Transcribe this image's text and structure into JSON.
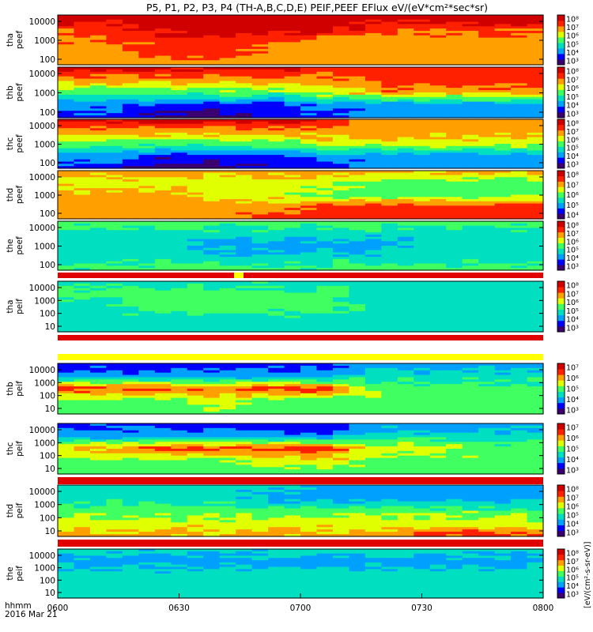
{
  "title": "P5, P1, P2, P3, P4 (TH-A,B,C,D,E) PEIF,PEEF EFlux eV/(eV*cm²*sec*sr)",
  "footer": {
    "label_line1": "hhmm",
    "label_line2": "2016 Mar 21"
  },
  "colorbar_unit": "[eV/(cm²-s-sr-eV)]",
  "colors": {
    "scale": [
      "#3a0070",
      "#0000ff",
      "#00a0ff",
      "#00e0c0",
      "#40ff60",
      "#e0ff00",
      "#ffa000",
      "#ff2000",
      "#d00000"
    ],
    "flag_red": "#e00000",
    "flag_yellow": "#ffff00"
  },
  "chart_data": {
    "type": "heatmap",
    "x_axis": {
      "tick_labels": [
        "0600",
        "0630",
        "0700",
        "0730",
        "0800"
      ],
      "range": [
        "0600",
        "0800"
      ]
    },
    "y_axis": {
      "scale": "log",
      "tick_labels": [
        "10",
        "100",
        "1000",
        "10000"
      ]
    },
    "colorbar_tick_labels": [
      "10³",
      "10⁴",
      "10⁵",
      "10⁶",
      "10⁷",
      "10⁸"
    ],
    "panels": [
      {
        "label_line1": "tha",
        "label_line2": "peef",
        "ticks": [
          "100",
          "1000",
          "10000"
        ],
        "profile": "hot",
        "spec_min": 3,
        "spec_max": 8,
        "levels": [
          [
            8,
            8,
            9,
            9,
            8,
            8,
            8,
            8,
            9,
            9
          ],
          [
            7,
            7,
            8,
            8,
            8,
            8,
            7,
            7,
            7,
            7
          ],
          [
            6,
            7,
            7,
            7,
            7,
            6,
            6,
            6,
            6,
            6
          ],
          [
            6,
            6,
            7,
            7,
            6,
            6,
            6,
            6,
            6,
            6
          ],
          [
            6,
            6,
            6,
            6,
            6,
            6,
            6,
            6,
            6,
            6
          ]
        ]
      },
      {
        "label_line1": "thb",
        "label_line2": "peef",
        "ticks": [
          "100",
          "1000",
          "10000"
        ],
        "profile": "cold",
        "spec_min": 3,
        "spec_max": 8,
        "levels": [
          [
            8,
            8,
            8,
            8,
            8,
            7,
            7,
            7,
            7,
            7
          ],
          [
            6,
            6,
            6,
            6,
            6,
            6,
            7,
            7,
            7,
            7
          ],
          [
            4,
            4,
            4,
            4,
            4,
            5,
            6,
            6,
            6,
            6
          ],
          [
            2,
            2,
            1,
            1,
            1,
            2,
            2,
            2,
            2,
            2
          ],
          [
            1,
            1,
            0,
            0,
            1,
            1,
            2,
            2,
            2,
            2
          ]
        ]
      },
      {
        "label_line1": "thc",
        "label_line2": "peef",
        "ticks": [
          "100",
          "1000",
          "10000"
        ],
        "profile": "cold",
        "spec_min": 3,
        "spec_max": 8,
        "levels": [
          [
            8,
            8,
            8,
            8,
            8,
            7,
            6,
            6,
            6,
            6
          ],
          [
            6,
            6,
            6,
            6,
            6,
            6,
            6,
            6,
            6,
            6
          ],
          [
            4,
            4,
            4,
            4,
            4,
            5,
            5,
            5,
            5,
            5
          ],
          [
            2,
            2,
            1,
            1,
            1,
            2,
            2,
            2,
            2,
            2
          ],
          [
            1,
            1,
            0,
            0,
            1,
            1,
            2,
            2,
            2,
            2
          ]
        ]
      },
      {
        "label_line1": "thd",
        "label_line2": "peef",
        "ticks": [
          "100",
          "1000",
          "10000"
        ],
        "profile": "mixed",
        "spec_min": 4,
        "spec_max": 8,
        "levels": [
          [
            6,
            6,
            6,
            6,
            6,
            6,
            6,
            6,
            6,
            6
          ],
          [
            5,
            5,
            5,
            5,
            5,
            5,
            4,
            4,
            4,
            4
          ],
          [
            6,
            6,
            6,
            5,
            5,
            4,
            4,
            4,
            4,
            4
          ],
          [
            6,
            6,
            6,
            6,
            6,
            7,
            7,
            7,
            7,
            7
          ],
          [
            6,
            6,
            6,
            6,
            7,
            7,
            7,
            7,
            7,
            7
          ]
        ]
      },
      {
        "label_line1": "the",
        "label_line2": "peef",
        "ticks": [
          "100",
          "1000",
          "10000"
        ],
        "profile": "green",
        "spec_min": 3,
        "spec_max": 8,
        "levels": [
          [
            4,
            4,
            4,
            4,
            4,
            4,
            4,
            4,
            4,
            4
          ],
          [
            3,
            3,
            3,
            3,
            3,
            3,
            3,
            3,
            3,
            3
          ],
          [
            3,
            3,
            3,
            2,
            2,
            2,
            2,
            3,
            3,
            3
          ],
          [
            3,
            3,
            3,
            3,
            3,
            3,
            3,
            3,
            3,
            3
          ],
          [
            4,
            4,
            4,
            4,
            4,
            4,
            4,
            4,
            4,
            4
          ]
        ]
      },
      {
        "label_line1": "tha",
        "label_line2": "peif",
        "ticks": [
          "10",
          "100",
          "1000",
          "10000"
        ],
        "profile": "green",
        "spec_min": 3,
        "spec_max": 8,
        "levels": [
          [
            3,
            3,
            3,
            3,
            3,
            3,
            3,
            3,
            3,
            3
          ],
          [
            4,
            4,
            4,
            4,
            4,
            4,
            3,
            3,
            3,
            3
          ],
          [
            3,
            3,
            4,
            4,
            4,
            4,
            3,
            3,
            3,
            3
          ],
          [
            3,
            3,
            3,
            3,
            3,
            3,
            3,
            3,
            3,
            3
          ],
          [
            3,
            3,
            3,
            3,
            3,
            3,
            3,
            3,
            3,
            3
          ]
        ]
      },
      {
        "label_line1": "thb",
        "label_line2": "peif",
        "ticks": [
          "10",
          "100",
          "1000",
          "10000"
        ],
        "profile": "ion",
        "spec_min": 3,
        "spec_max": 7,
        "levels": [
          [
            1,
            1,
            1,
            1,
            1,
            1,
            2,
            2,
            2,
            2
          ],
          [
            2,
            2,
            2,
            2,
            2,
            2,
            3,
            3,
            3,
            3
          ],
          [
            7,
            7,
            7,
            6,
            7,
            7,
            4,
            4,
            4,
            4
          ],
          [
            4,
            4,
            4,
            5,
            4,
            4,
            4,
            4,
            4,
            4
          ],
          [
            4,
            4,
            4,
            4,
            4,
            4,
            4,
            4,
            4,
            4
          ]
        ]
      },
      {
        "label_line1": "thc",
        "label_line2": "peif",
        "ticks": [
          "10",
          "100",
          "1000",
          "10000"
        ],
        "profile": "ion",
        "spec_min": 3,
        "spec_max": 7,
        "levels": [
          [
            1,
            1,
            1,
            1,
            1,
            1,
            2,
            2,
            2,
            2
          ],
          [
            2,
            2,
            2,
            2,
            2,
            2,
            3,
            3,
            3,
            3
          ],
          [
            6,
            6,
            7,
            7,
            7,
            7,
            5,
            5,
            4,
            4
          ],
          [
            4,
            4,
            4,
            4,
            5,
            5,
            4,
            4,
            4,
            4
          ],
          [
            4,
            4,
            4,
            4,
            4,
            4,
            4,
            4,
            4,
            4
          ]
        ]
      },
      {
        "label_line1": "thd",
        "label_line2": "peif",
        "ticks": [
          "10",
          "100",
          "1000",
          "10000"
        ],
        "profile": "ionhot",
        "spec_min": 3,
        "spec_max": 8,
        "levels": [
          [
            3,
            3,
            3,
            3,
            3,
            2,
            2,
            2,
            2,
            2
          ],
          [
            3,
            3,
            3,
            3,
            2,
            2,
            2,
            2,
            2,
            2
          ],
          [
            4,
            4,
            4,
            4,
            4,
            4,
            4,
            4,
            4,
            4
          ],
          [
            5,
            5,
            5,
            5,
            5,
            5,
            5,
            5,
            5,
            5
          ],
          [
            6,
            6,
            6,
            6,
            6,
            6,
            6,
            7,
            7,
            7
          ]
        ]
      },
      {
        "label_line1": "the",
        "label_line2": "peif",
        "ticks": [
          "10",
          "100",
          "1000",
          "10000"
        ],
        "profile": "green",
        "spec_min": 3,
        "spec_max": 8,
        "levels": [
          [
            3,
            3,
            3,
            3,
            3,
            3,
            3,
            3,
            3,
            3
          ],
          [
            2,
            2,
            2,
            2,
            2,
            2,
            2,
            2,
            2,
            2
          ],
          [
            3,
            3,
            3,
            3,
            3,
            3,
            3,
            3,
            3,
            3
          ],
          [
            3,
            3,
            3,
            3,
            3,
            3,
            3,
            3,
            3,
            3
          ],
          [
            3,
            3,
            3,
            3,
            3,
            3,
            3,
            3,
            3,
            3
          ]
        ]
      }
    ]
  }
}
